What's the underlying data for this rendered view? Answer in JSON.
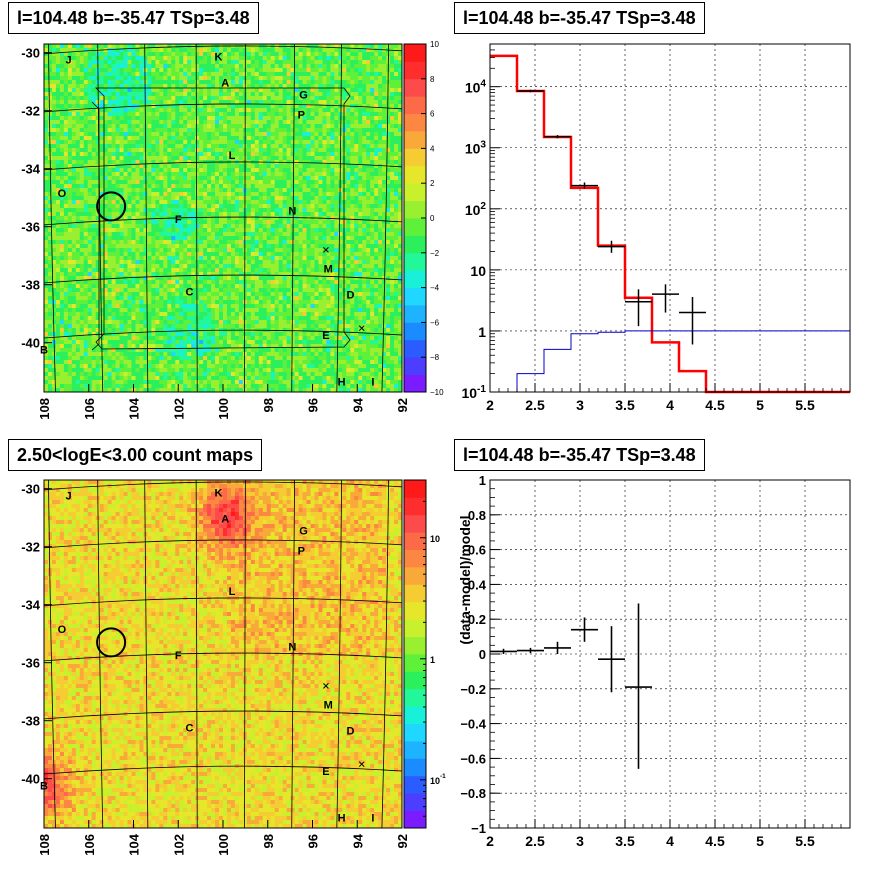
{
  "chart_data": [
    {
      "type": "heatmap",
      "title": "l=104.48 b=-35.47 TSp=3.48",
      "xlabel": "",
      "ylabel": "",
      "x_ticks": [
        "108",
        "106",
        "104",
        "102",
        "100",
        "98",
        "96",
        "94",
        "92"
      ],
      "y_ticks": [
        "-30",
        "-32",
        "-34",
        "-36",
        "-38",
        "-40"
      ],
      "xlim": [
        108,
        92
      ],
      "ylim": [
        -41.7,
        -29.7
      ],
      "colorbar": {
        "scale": "linear",
        "range": [
          -10,
          10
        ],
        "ticks": [
          "10",
          "8",
          "6",
          "4",
          "2",
          "0",
          "−2",
          "−4",
          "−6",
          "−8",
          "−10"
        ]
      },
      "sources": [
        {
          "label": "J",
          "l": 106.9,
          "b": -30.2
        },
        {
          "label": "K",
          "l": 100.2,
          "b": -30.1
        },
        {
          "label": "A",
          "l": 99.9,
          "b": -31.0
        },
        {
          "label": "G",
          "l": 96.4,
          "b": -31.4
        },
        {
          "label": "P",
          "l": 96.5,
          "b": -32.1
        },
        {
          "label": "L",
          "l": 99.6,
          "b": -33.5
        },
        {
          "label": "O",
          "l": 107.2,
          "b": -34.8
        },
        {
          "label": "F",
          "l": 102.0,
          "b": -35.7
        },
        {
          "label": "N",
          "l": 96.9,
          "b": -35.4
        },
        {
          "label": "M",
          "l": 95.3,
          "b": -37.4
        },
        {
          "label": "C",
          "l": 101.5,
          "b": -38.2
        },
        {
          "label": "D",
          "l": 94.3,
          "b": -38.3
        },
        {
          "label": "B",
          "l": 108.0,
          "b": -40.2
        },
        {
          "label": "E",
          "l": 95.4,
          "b": -39.7
        },
        {
          "label": "H",
          "l": 94.7,
          "b": -41.3
        },
        {
          "label": "I",
          "l": 93.3,
          "b": -41.3
        }
      ],
      "crosses": [
        {
          "l": 95.4,
          "b": -36.8
        },
        {
          "l": 93.8,
          "b": -39.5
        }
      ],
      "circle": {
        "l": 105.0,
        "b": -35.3
      },
      "palette": [
        "#7a1cff",
        "#4d3dff",
        "#2a5cff",
        "#1b8cff",
        "#1db3ff",
        "#20d8ff",
        "#19f0d9",
        "#22f79a",
        "#2bf05c",
        "#5ff03a",
        "#99f030",
        "#c8f02d",
        "#e6e62b",
        "#f5cc32",
        "#f9a93a",
        "#fb8742",
        "#fc6a48",
        "#fd4a4a",
        "#fe2e2e",
        "#ff1a1a"
      ]
    },
    {
      "type": "line",
      "title": "l=104.48 b=-35.47 TSp=3.48",
      "xlabel": "",
      "ylabel": "",
      "xlim": [
        2,
        6
      ],
      "ylim": [
        0.1,
        50000
      ],
      "y_scale": "log",
      "grid": true,
      "x_ticks": [
        "2",
        "2.5",
        "3",
        "3.5",
        "4",
        "4.5",
        "5",
        "5.5"
      ],
      "y_ticks": [
        "10^-1",
        "1",
        "10",
        "10^2",
        "10^3",
        "10^4"
      ],
      "series": [
        {
          "color": "#ff0000",
          "style": "step",
          "edges": [
            2.0,
            2.3,
            2.6,
            2.9,
            3.2,
            3.5,
            3.8,
            4.1,
            4.4,
            6.0
          ],
          "values": [
            32000,
            8500,
            1500,
            220,
            25,
            3.5,
            0.65,
            0.22,
            0.1
          ]
        },
        {
          "color": "#0000cc",
          "style": "step",
          "edges": [
            2.0,
            2.3,
            2.6,
            2.9,
            3.2,
            3.5,
            3.8,
            4.1,
            4.4,
            6.0
          ],
          "values": [
            0.02,
            0.2,
            0.5,
            0.9,
            0.95,
            1.0,
            1.0,
            1.0,
            1.0
          ]
        },
        {
          "color": "#000000",
          "style": "points",
          "points": [
            {
              "x": 2.45,
              "xerr": 0.15,
              "y": 8500,
              "ylo": 8100,
              "yhi": 8900
            },
            {
              "x": 2.75,
              "xerr": 0.15,
              "y": 1520,
              "ylo": 1430,
              "yhi": 1610
            },
            {
              "x": 3.05,
              "xerr": 0.15,
              "y": 240,
              "ylo": 215,
              "yhi": 270
            },
            {
              "x": 3.35,
              "xerr": 0.15,
              "y": 24,
              "ylo": 19,
              "yhi": 30
            },
            {
              "x": 3.65,
              "xerr": 0.15,
              "y": 3,
              "ylo": 1.2,
              "yhi": 4.8
            },
            {
              "x": 3.95,
              "xerr": 0.15,
              "y": 4,
              "ylo": 2,
              "yhi": 5.8
            },
            {
              "x": 4.25,
              "xerr": 0.15,
              "y": 2,
              "ylo": 0.6,
              "yhi": 3.6
            }
          ]
        }
      ]
    },
    {
      "type": "heatmap",
      "title": "2.50<logE<3.00 count maps",
      "xlabel": "",
      "ylabel": "",
      "x_ticks": [
        "108",
        "106",
        "104",
        "102",
        "100",
        "98",
        "96",
        "94",
        "92"
      ],
      "y_ticks": [
        "-30",
        "-32",
        "-34",
        "-36",
        "-38",
        "-40"
      ],
      "xlim": [
        108,
        92
      ],
      "ylim": [
        -41.7,
        -29.7
      ],
      "colorbar": {
        "scale": "log",
        "range": [
          0.04,
          30
        ],
        "ticks": [
          "10",
          "1",
          "10^-1"
        ]
      },
      "palette": [
        "#7a1cff",
        "#4d3dff",
        "#2a5cff",
        "#1b8cff",
        "#1db3ff",
        "#20d8ff",
        "#19f0d9",
        "#22f79a",
        "#2bf05c",
        "#5ff03a",
        "#99f030",
        "#c8f02d",
        "#e6e62b",
        "#f5cc32",
        "#f9a93a",
        "#fb8742",
        "#fc6a48",
        "#fd4a4a",
        "#fe2e2e",
        "#ff1a1a"
      ]
    },
    {
      "type": "scatter",
      "title": "l=104.48 b=-35.47 TSp=3.48",
      "xlabel": "",
      "ylabel": "(data-model)/model",
      "xlim": [
        2,
        6
      ],
      "ylim": [
        -1,
        1
      ],
      "grid": true,
      "x_ticks": [
        "2",
        "2.5",
        "3",
        "3.5",
        "4",
        "4.5",
        "5",
        "5.5"
      ],
      "y_ticks": [
        "1",
        "0.8",
        "0.6",
        "0.4",
        "0.2",
        "0",
        "−0.2",
        "−0.4",
        "−0.6",
        "−0.8",
        "−1"
      ],
      "points": [
        {
          "x": 2.15,
          "xerr": 0.15,
          "y": 0.015,
          "ylo": 0.0,
          "yhi": 0.03
        },
        {
          "x": 2.45,
          "xerr": 0.15,
          "y": 0.02,
          "ylo": 0.005,
          "yhi": 0.035
        },
        {
          "x": 2.75,
          "xerr": 0.15,
          "y": 0.035,
          "ylo": 0.0,
          "yhi": 0.07
        },
        {
          "x": 3.05,
          "xerr": 0.15,
          "y": 0.14,
          "ylo": 0.07,
          "yhi": 0.21
        },
        {
          "x": 3.35,
          "xerr": 0.15,
          "y": -0.03,
          "ylo": -0.22,
          "yhi": 0.16
        },
        {
          "x": 3.65,
          "xerr": 0.15,
          "y": -0.19,
          "ylo": -0.66,
          "yhi": 0.29
        }
      ]
    }
  ]
}
